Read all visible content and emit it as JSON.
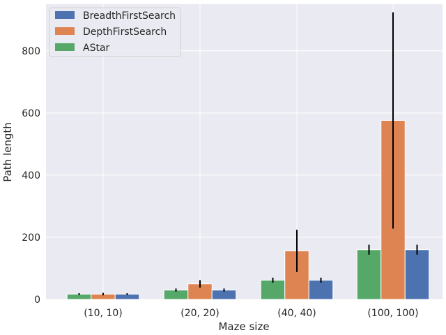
{
  "chart_data": {
    "type": "bar",
    "title": "",
    "xlabel": "Maze size",
    "ylabel": "Path length",
    "categories": [
      "(10, 10)",
      "(20, 20)",
      "(40, 40)",
      "(100, 100)"
    ],
    "ylim": [
      0,
      950
    ],
    "yticks": [
      0,
      200,
      400,
      600,
      800
    ],
    "grid": true,
    "legend_position": "top-left",
    "bar_order": [
      "AStar",
      "DepthFirstSearch",
      "BreadthFirstSearch"
    ],
    "series": [
      {
        "name": "BreadthFirstSearch",
        "color": "#4c72b0",
        "values": [
          17,
          30,
          62,
          160
        ],
        "errors": [
          3,
          5,
          8,
          16
        ]
      },
      {
        "name": "DepthFirstSearch",
        "color": "#dd8452",
        "values": [
          17,
          50,
          156,
          576
        ],
        "errors": [
          4,
          12,
          68,
          348
        ]
      },
      {
        "name": "AStar",
        "color": "#55a868",
        "values": [
          17,
          30,
          62,
          160
        ],
        "errors": [
          3,
          5,
          8,
          16
        ]
      }
    ],
    "error_bar_color": "#000000",
    "plot_background": "#eaeaf2",
    "grid_color": "#ffffff"
  }
}
